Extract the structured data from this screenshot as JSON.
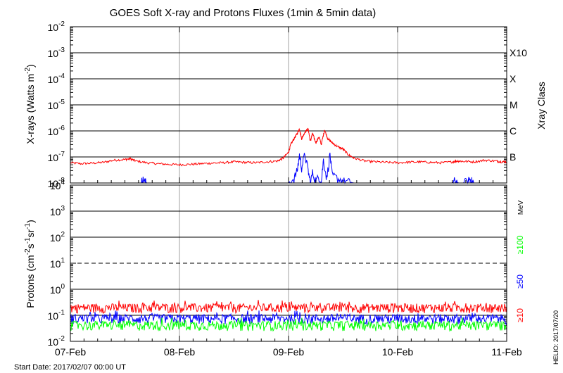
{
  "title": "GOES Soft X-ray and Protons Fluxes   (1min & 5min data)",
  "footer": {
    "start_date": "Start Date: 2017/02/07 00:00 UT",
    "credit": "HELIO: 2017/07/20"
  },
  "colors": {
    "red": "#ff0000",
    "blue": "#0000ff",
    "green": "#00ff00",
    "grid": "#a0a0a0",
    "axis": "#000000"
  },
  "chart_data": [
    {
      "type": "line",
      "ylabel_main": "X-rays (Watts m",
      "ylabel_sup": "-2",
      "ylabel_tail": ")",
      "y_scale": "log",
      "ylim": [
        1e-08,
        0.01
      ],
      "x": [
        "07-Feb",
        "08-Feb",
        "09-Feb",
        "10-Feb",
        "11-Feb"
      ],
      "xlim": [
        "2017-02-07",
        "2017-02-11"
      ],
      "y_ticks": [
        {
          "value": 0.01,
          "base": "10",
          "exp": "-2"
        },
        {
          "value": 0.001,
          "base": "10",
          "exp": "-3"
        },
        {
          "value": 0.0001,
          "base": "10",
          "exp": "-4"
        },
        {
          "value": 1e-05,
          "base": "10",
          "exp": "-5"
        },
        {
          "value": 1e-06,
          "base": "10",
          "exp": "-6"
        },
        {
          "value": 1e-07,
          "base": "10",
          "exp": "-7"
        },
        {
          "value": 1e-08,
          "base": "10",
          "exp": "-8"
        }
      ],
      "right_axis_title": "Xray Class",
      "right_labels": [
        {
          "value": 0.001,
          "label": "X10"
        },
        {
          "value": 0.0001,
          "label": "X"
        },
        {
          "value": 1e-05,
          "label": "M"
        },
        {
          "value": 1e-06,
          "label": "C"
        },
        {
          "value": 1e-07,
          "label": "B"
        }
      ],
      "grid": true,
      "series": [
        {
          "color": "#ff0000",
          "x": [
            0.0,
            0.1,
            0.2,
            0.3,
            0.4,
            0.5,
            0.55,
            0.6,
            0.7,
            0.8,
            0.9,
            1.0,
            1.1,
            1.2,
            1.3,
            1.4,
            1.5,
            1.6,
            1.7,
            1.8,
            1.9,
            1.95,
            2.0,
            2.02,
            2.05,
            2.08,
            2.1,
            2.12,
            2.15,
            2.18,
            2.2,
            2.22,
            2.25,
            2.28,
            2.3,
            2.33,
            2.36,
            2.4,
            2.45,
            2.5,
            2.55,
            2.6,
            2.7,
            2.8,
            2.9,
            3.0,
            3.1,
            3.2,
            3.3,
            3.4,
            3.5,
            3.55,
            3.6,
            3.7,
            3.8,
            3.9,
            3.95,
            4.0
          ],
          "y": [
            6e-08,
            5.5e-08,
            5.8e-08,
            6.2e-08,
            7.5e-08,
            8e-08,
            8.5e-08,
            7e-08,
            6e-08,
            5.5e-08,
            5.2e-08,
            5e-08,
            5.2e-08,
            5.5e-08,
            5.8e-08,
            6e-08,
            6.5e-08,
            6.2e-08,
            6e-08,
            6.5e-08,
            7e-08,
            9e-08,
            1.5e-07,
            3e-07,
            5e-07,
            8e-07,
            1.2e-06,
            5e-07,
            9e-07,
            1.2e-06,
            4e-07,
            8e-07,
            3.5e-07,
            6e-07,
            3e-07,
            1.1e-06,
            5e-07,
            3.5e-07,
            2.5e-07,
            2e-07,
            1.2e-07,
            9e-08,
            7e-08,
            6.5e-08,
            6.2e-08,
            6e-08,
            6.3e-08,
            6.5e-08,
            6.2e-08,
            6e-08,
            6.5e-08,
            7e-08,
            6.8e-08,
            6.5e-08,
            7.5e-08,
            7e-08,
            6.5e-08,
            6.5e-08
          ]
        },
        {
          "color": "#0000ff",
          "x": [
            0.0,
            0.65,
            0.66,
            0.68,
            0.7,
            2.0,
            2.05,
            2.08,
            2.1,
            2.12,
            2.15,
            2.18,
            2.2,
            2.22,
            2.25,
            2.28,
            2.3,
            2.32,
            2.35,
            2.38,
            2.4,
            2.45,
            2.5,
            2.55,
            2.6,
            3.5,
            3.52,
            3.54,
            3.56,
            3.6,
            3.65,
            3.66,
            3.68,
            3.7,
            4.0
          ],
          "y": [
            1e-08,
            1e-08,
            1.4e-08,
            1.2e-08,
            1e-08,
            1e-08,
            1.5e-08,
            3e-08,
            1.2e-07,
            4e-08,
            1.3e-07,
            3e-08,
            1e-08,
            2.5e-08,
            1.2e-08,
            1.8e-08,
            1e-08,
            8e-08,
            1.5e-08,
            1.3e-07,
            2e-08,
            1.5e-08,
            1.2e-08,
            1.1e-08,
            1e-08,
            1e-08,
            1.2e-08,
            1.1e-08,
            1e-08,
            1e-08,
            1.2e-08,
            1.5e-08,
            1.2e-08,
            1e-08,
            1e-08
          ]
        }
      ]
    },
    {
      "type": "line",
      "ylabel_main": "Protons (cm",
      "ylabel_sup1": "-2",
      "ylabel_mid": "s",
      "ylabel_sup2": "-1",
      "ylabel_mid2": "sr",
      "ylabel_sup3": "-1",
      "ylabel_tail": ")",
      "y_scale": "log",
      "ylim": [
        0.01,
        10000
      ],
      "x": [
        "07-Feb",
        "08-Feb",
        "09-Feb",
        "10-Feb",
        "11-Feb"
      ],
      "xlim": [
        "2017-02-07",
        "2017-02-11"
      ],
      "y_ticks": [
        {
          "value": 10000,
          "base": "10",
          "exp": "4"
        },
        {
          "value": 1000,
          "base": "10",
          "exp": "3"
        },
        {
          "value": 100,
          "base": "10",
          "exp": "2"
        },
        {
          "value": 10,
          "base": "10",
          "exp": "1"
        },
        {
          "value": 1,
          "base": "10",
          "exp": "0"
        },
        {
          "value": 0.1,
          "base": "10",
          "exp": "-1"
        },
        {
          "value": 0.01,
          "base": "10",
          "exp": "-2"
        }
      ],
      "right_axis_unit": "MeV",
      "right_labels": [
        {
          "label": "≥100",
          "color": "#00ff00"
        },
        {
          "label": "≥50",
          "color": "#0000ff"
        },
        {
          "label": "≥10",
          "color": "#ff0000"
        }
      ],
      "threshold_line": 10,
      "grid": true,
      "series": [
        {
          "color": "#ff0000",
          "label": "≥10",
          "level": 0.16,
          "noise_low": 0.12,
          "noise_high": 0.28
        },
        {
          "color": "#0000ff",
          "label": "≥50",
          "level": 0.07,
          "noise_low": 0.045,
          "noise_high": 0.11
        },
        {
          "color": "#00ff00",
          "label": "≥100",
          "level": 0.04,
          "noise_low": 0.025,
          "noise_high": 0.06
        }
      ]
    }
  ]
}
